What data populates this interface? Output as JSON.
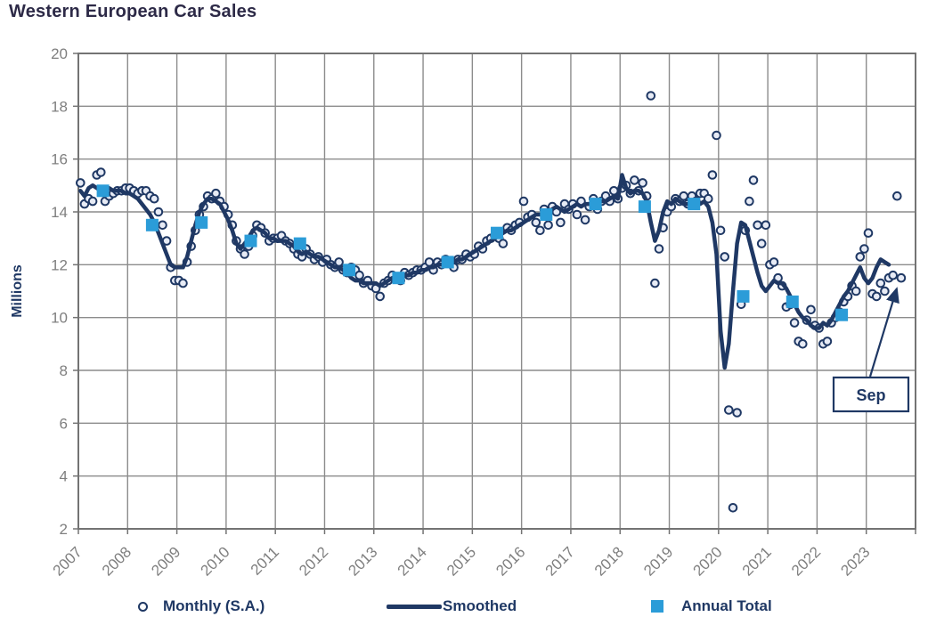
{
  "title": "Western European Car Sales",
  "legend": {
    "monthly": "Monthly (S.A.)",
    "smoothed": "Smoothed",
    "annual": "Annual Total"
  },
  "colors": {
    "navy": "#1F3864",
    "annual_blue": "#2B9CD8",
    "point_fill": "#E7EBF5",
    "grid": "#8C8C8C",
    "frame": "#737373",
    "tick_text": "#7F7F7F",
    "title_text": "#2D2A47",
    "background": "#FFFFFF"
  },
  "chart_data": {
    "type": "line",
    "title": "Western European Car Sales",
    "xlabel": "",
    "ylabel": "Millions",
    "ylim": [
      2,
      20
    ],
    "ytick_step": 2,
    "yticks": [
      2,
      4,
      6,
      8,
      10,
      12,
      14,
      16,
      18,
      20
    ],
    "xticklabels": [
      "2007",
      "2008",
      "2009",
      "2010",
      "2011",
      "2012",
      "2013",
      "2014",
      "2015",
      "2016",
      "2017",
      "2018",
      "2019",
      "2020",
      "2021",
      "2022",
      "2023"
    ],
    "grid": true,
    "legend_position": "bottom",
    "series": [
      {
        "name": "Monthly (S.A.)",
        "type": "scatter",
        "marker": "circle",
        "years": [
          2007,
          2008,
          2009,
          2010,
          2011,
          2012,
          2013,
          2014,
          2015,
          2016,
          2017,
          2018,
          2019,
          2020,
          2021,
          2022,
          2023
        ],
        "values_by_year": [
          [
            15.1,
            14.3,
            14.5,
            14.4,
            15.4,
            15.5,
            14.4,
            14.6,
            14.7,
            14.8,
            14.8,
            14.9
          ],
          [
            14.9,
            14.8,
            14.7,
            14.8,
            14.8,
            14.6,
            14.5,
            14.0,
            13.5,
            12.9,
            11.9,
            11.4
          ],
          [
            11.4,
            11.3,
            12.1,
            12.7,
            13.3,
            13.9,
            14.2,
            14.6,
            14.5,
            14.7,
            14.4,
            14.2
          ],
          [
            13.9,
            13.5,
            12.9,
            12.6,
            12.4,
            12.7,
            13.1,
            13.5,
            13.4,
            13.2,
            12.9,
            13.0
          ],
          [
            13.0,
            13.1,
            12.9,
            12.8,
            12.6,
            12.4,
            12.3,
            12.6,
            12.4,
            12.2,
            12.3,
            12.1
          ],
          [
            12.2,
            12.0,
            11.9,
            12.1,
            11.8,
            11.7,
            11.9,
            11.8,
            11.6,
            11.3,
            11.4,
            11.2
          ],
          [
            11.1,
            10.8,
            11.3,
            11.4,
            11.6,
            11.5,
            11.4,
            11.7,
            11.6,
            11.7,
            11.8,
            11.8
          ],
          [
            11.9,
            12.1,
            11.8,
            12.1,
            12.0,
            12.2,
            12.1,
            11.9,
            12.2,
            12.2,
            12.4,
            12.3
          ],
          [
            12.4,
            12.7,
            12.6,
            12.9,
            13.0,
            13.1,
            13.0,
            12.8,
            13.4,
            13.3,
            13.5,
            13.6
          ],
          [
            14.4,
            13.8,
            13.9,
            13.6,
            13.3,
            14.1,
            13.5,
            14.2,
            14.0,
            13.6,
            14.3,
            14.1
          ],
          [
            14.3,
            13.9,
            14.4,
            13.7,
            14.2,
            14.5,
            14.1,
            14.4,
            14.6,
            14.4,
            14.8,
            14.5
          ],
          [
            14.9,
            15.0,
            14.7,
            15.2,
            14.8,
            15.1,
            14.6,
            18.4,
            11.3,
            12.6,
            13.4,
            14.0
          ],
          [
            14.2,
            14.5,
            14.4,
            14.6,
            14.3,
            14.6,
            14.4,
            14.7,
            14.7,
            14.5,
            15.4,
            16.9
          ],
          [
            13.3,
            12.3,
            6.5,
            2.8,
            6.4,
            10.5,
            13.3,
            14.4,
            15.2,
            13.5,
            12.8,
            13.5
          ],
          [
            12.0,
            12.1,
            11.5,
            11.2,
            10.4,
            10.5,
            9.8,
            9.1,
            9.0,
            9.9,
            10.3,
            9.7
          ],
          [
            9.6,
            9.0,
            9.1,
            9.8,
            10.0,
            10.2,
            10.6,
            10.8,
            11.2,
            11.0,
            12.3,
            12.6
          ],
          [
            13.2,
            10.9,
            10.8,
            11.3,
            11.0,
            11.5,
            11.6,
            14.6,
            11.5
          ]
        ]
      },
      {
        "name": "Smoothed",
        "type": "line",
        "years": [
          2007,
          2008,
          2009,
          2010,
          2011,
          2012,
          2013,
          2014,
          2015,
          2016,
          2017,
          2018,
          2019,
          2020,
          2021,
          2022,
          2023
        ],
        "values_by_year": [
          [
            14.8,
            14.6,
            14.9,
            15.0,
            14.9,
            14.8,
            14.8,
            14.9,
            14.8,
            14.8,
            14.8,
            14.7
          ],
          [
            14.7,
            14.6,
            14.5,
            14.3,
            14.1,
            13.9,
            13.6,
            13.2,
            12.8,
            12.4,
            12.0,
            11.9
          ],
          [
            11.9,
            11.9,
            12.3,
            12.9,
            13.5,
            14.0,
            14.3,
            14.5,
            14.5,
            14.4,
            14.3,
            14.0
          ],
          [
            13.7,
            13.3,
            12.8,
            12.6,
            12.8,
            13.0,
            13.3,
            13.4,
            13.3,
            13.2,
            13.0,
            13.0
          ],
          [
            12.9,
            12.9,
            12.9,
            12.8,
            12.7,
            12.5,
            12.4,
            12.5,
            12.4,
            12.3,
            12.3,
            12.2
          ],
          [
            12.1,
            12.0,
            11.9,
            11.9,
            11.8,
            11.7,
            11.5,
            11.4,
            11.4,
            11.3,
            11.3,
            11.3
          ],
          [
            11.3,
            11.2,
            11.3,
            11.4,
            11.5,
            11.5,
            11.5,
            11.6,
            11.6,
            11.7,
            11.7,
            11.8
          ],
          [
            11.8,
            11.9,
            11.9,
            12.0,
            12.0,
            12.1,
            12.1,
            12.1,
            12.2,
            12.2,
            12.3,
            12.4
          ],
          [
            12.5,
            12.6,
            12.7,
            12.8,
            12.9,
            13.0,
            13.1,
            13.2,
            13.3,
            13.3,
            13.4,
            13.5
          ],
          [
            13.6,
            13.7,
            13.8,
            13.9,
            13.9,
            13.9,
            14.0,
            14.1,
            14.2,
            14.1,
            14.0,
            14.1
          ],
          [
            14.2,
            14.3,
            14.2,
            14.3,
            14.3,
            14.3,
            14.4,
            14.4,
            14.4,
            14.5,
            14.6,
            14.5
          ],
          [
            15.4,
            14.9,
            14.7,
            14.8,
            14.8,
            14.7,
            14.4,
            13.6,
            12.9,
            13.3,
            14.0,
            14.4
          ],
          [
            14.3,
            14.5,
            14.4,
            14.3,
            14.3,
            14.4,
            14.3,
            14.3,
            14.4,
            14.2,
            13.6,
            12.4
          ],
          [
            9.5,
            8.1,
            9.0,
            11.0,
            12.8,
            13.6,
            13.5,
            12.9,
            12.3,
            11.7,
            11.2,
            11.0
          ],
          [
            11.2,
            11.4,
            11.3,
            11.3,
            11.1,
            10.8,
            10.5,
            10.2,
            10.0,
            9.9,
            9.7,
            9.6
          ],
          [
            9.6,
            9.8,
            9.7,
            9.9,
            10.2,
            10.5,
            10.8,
            11.0,
            11.3,
            11.6,
            11.9,
            11.5
          ],
          [
            11.3,
            11.5,
            11.9,
            12.2,
            12.1,
            12.0
          ]
        ]
      },
      {
        "name": "Annual Total",
        "type": "scatter",
        "marker": "square",
        "years": [
          2007,
          2008,
          2009,
          2010,
          2011,
          2012,
          2013,
          2014,
          2015,
          2016,
          2017,
          2018,
          2019,
          2020,
          2021,
          2022
        ],
        "values": [
          14.8,
          13.5,
          13.6,
          12.9,
          12.8,
          11.8,
          11.5,
          12.1,
          13.2,
          13.9,
          14.3,
          14.2,
          14.3,
          10.8,
          10.6,
          10.1
        ]
      }
    ],
    "annotations": [
      {
        "text": "Sep",
        "x_year": 2023,
        "x_month": 9,
        "y": 11.5
      }
    ]
  }
}
